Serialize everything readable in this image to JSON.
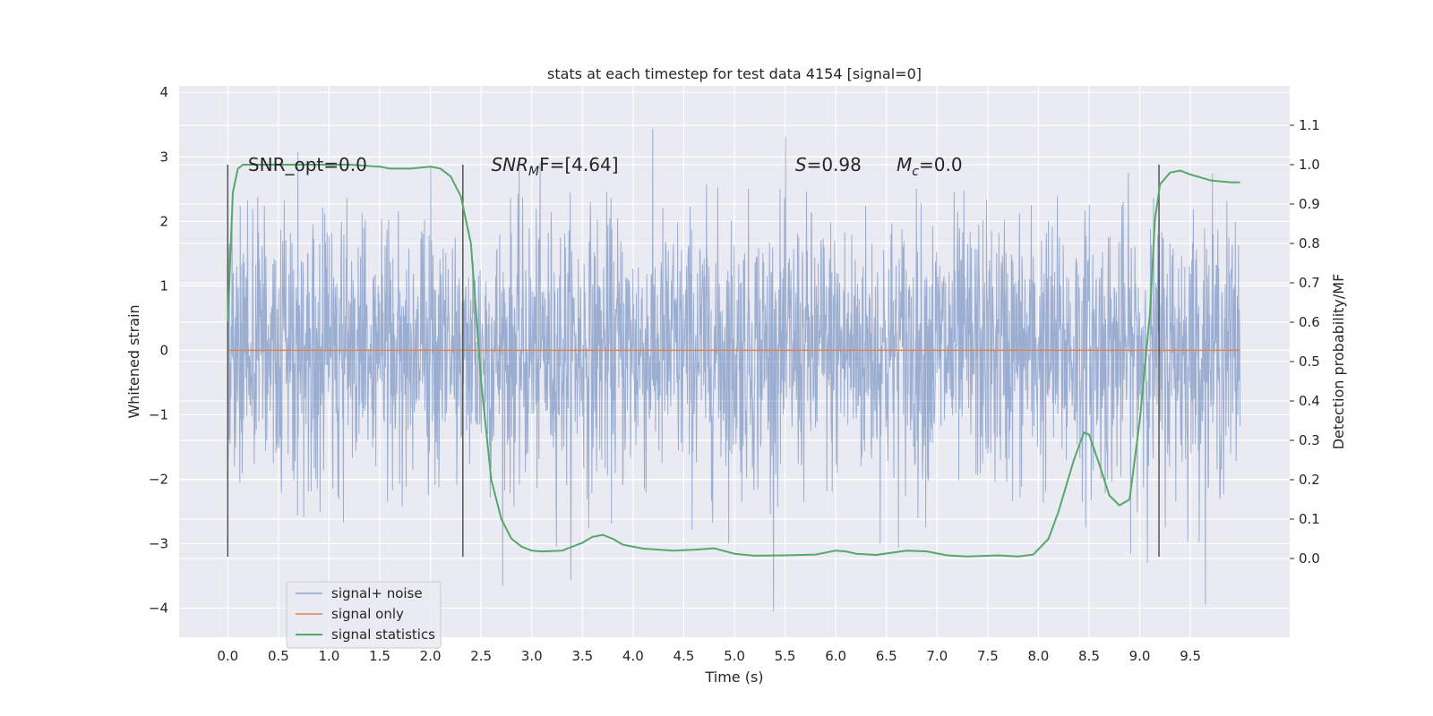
{
  "chart_data": {
    "type": "line",
    "title": "stats at each timestep for test data 4154 [signal=0]",
    "xlabel": "Time (s)",
    "ylabel_left": "Whitened strain",
    "ylabel_right": "Detection probability/MF",
    "xlim": [
      -0.48,
      10.48
    ],
    "ylim_left": [
      -4.45,
      4.1
    ],
    "ylim_right": [
      -0.2,
      1.2
    ],
    "x_ticks": [
      0.0,
      0.5,
      1.0,
      1.5,
      2.0,
      2.5,
      3.0,
      3.5,
      4.0,
      4.5,
      5.0,
      5.5,
      6.0,
      6.5,
      7.0,
      7.5,
      8.0,
      8.5,
      9.0,
      9.5
    ],
    "x_tick_labels": [
      "0.0",
      "0.5",
      "1.0",
      "1.5",
      "2.0",
      "2.5",
      "3.0",
      "3.5",
      "4.0",
      "4.5",
      "5.0",
      "5.5",
      "6.0",
      "6.5",
      "7.0",
      "7.5",
      "8.0",
      "8.5",
      "9.0",
      "9.5"
    ],
    "y_left_ticks": [
      -4,
      -3,
      -2,
      -1,
      0,
      1,
      2,
      3,
      4
    ],
    "y_left_tick_labels": [
      "−4",
      "−3",
      "−2",
      "−1",
      "0",
      "1",
      "2",
      "3",
      "4"
    ],
    "y_right_ticks": [
      0.0,
      0.1,
      0.2,
      0.3,
      0.4,
      0.5,
      0.6,
      0.7,
      0.8,
      0.9,
      1.0,
      1.1
    ],
    "y_right_tick_labels": [
      "0.0",
      "0.1",
      "0.2",
      "0.3",
      "0.4",
      "0.5",
      "0.6",
      "0.7",
      "0.8",
      "0.9",
      "1.0",
      "1.1"
    ],
    "grid": true,
    "background_color": "#eaeaf2",
    "noise_series": {
      "name": "signal+ noise",
      "color": "#4c72b0",
      "opacity": 0.5,
      "x_range": [
        0.0,
        9.99
      ],
      "note_band": "dense whitened strain samples, roughly within -2.5 to 2.5 with spikes up to about 3.7 and down to about -4.0"
    },
    "series": [
      {
        "name": "signal only",
        "color": "#dd8452",
        "axis": "left",
        "x": [
          0.0,
          9.99
        ],
        "y": [
          0.0,
          0.0
        ]
      },
      {
        "name": "signal statistics",
        "color": "#55a868",
        "axis": "right",
        "x": [
          0.0,
          0.05,
          0.1,
          0.15,
          0.2,
          0.3,
          0.5,
          0.8,
          1.0,
          1.2,
          1.5,
          1.6,
          1.8,
          2.0,
          2.1,
          2.2,
          2.3,
          2.4,
          2.5,
          2.6,
          2.7,
          2.8,
          2.9,
          3.0,
          3.1,
          3.3,
          3.5,
          3.6,
          3.7,
          3.8,
          3.9,
          4.1,
          4.4,
          4.6,
          4.8,
          5.0,
          5.2,
          5.5,
          5.8,
          6.0,
          6.1,
          6.2,
          6.4,
          6.7,
          6.9,
          7.1,
          7.3,
          7.6,
          7.8,
          7.95,
          8.1,
          8.2,
          8.35,
          8.45,
          8.5,
          8.6,
          8.7,
          8.8,
          8.9,
          9.0,
          9.1,
          9.15,
          9.2,
          9.3,
          9.4,
          9.5,
          9.7,
          9.9,
          9.99
        ],
        "y": [
          0.6,
          0.93,
          0.99,
          1.0,
          1.0,
          1.0,
          1.0,
          1.0,
          1.0,
          1.0,
          0.995,
          0.99,
          0.99,
          0.995,
          0.99,
          0.97,
          0.92,
          0.8,
          0.45,
          0.2,
          0.1,
          0.05,
          0.03,
          0.02,
          0.018,
          0.02,
          0.04,
          0.055,
          0.06,
          0.05,
          0.035,
          0.025,
          0.02,
          0.022,
          0.026,
          0.012,
          0.007,
          0.008,
          0.01,
          0.02,
          0.018,
          0.012,
          0.009,
          0.02,
          0.018,
          0.008,
          0.005,
          0.008,
          0.005,
          0.01,
          0.05,
          0.12,
          0.25,
          0.32,
          0.315,
          0.24,
          0.16,
          0.135,
          0.15,
          0.35,
          0.62,
          0.86,
          0.95,
          0.98,
          0.985,
          0.975,
          0.96,
          0.955,
          0.955
        ]
      }
    ],
    "vertical_markers": [
      {
        "x": 0.0,
        "y_range": [
          -3.2,
          2.88
        ],
        "color": "#555555"
      },
      {
        "x": 2.32,
        "y_range": [
          -3.2,
          2.88
        ],
        "color": "#555555"
      },
      {
        "x": 9.19,
        "y_range": [
          -3.2,
          2.88
        ],
        "color": "#555555"
      }
    ],
    "annotations": [
      {
        "text": "SNR_opt=0.0",
        "x": 0.2,
        "y_right": 1.0
      },
      {
        "text_main": "SNR",
        "text_sub": "M",
        "text_rest": "F=[4.64]",
        "x": 2.6,
        "y_right": 1.0,
        "italic_main": true
      },
      {
        "text_main": "S",
        "text_sub": "",
        "text_rest": "=0.98",
        "x": 5.6,
        "y_right": 1.0,
        "italic_main": true
      },
      {
        "text_main": "M",
        "text_sub": "c",
        "text_rest": "=0.0",
        "x": 6.6,
        "y_right": 1.0,
        "italic_main": true
      }
    ],
    "legend": {
      "placement": "lower-left",
      "entries": [
        "signal+ noise",
        "signal only",
        "signal statistics"
      ]
    }
  }
}
